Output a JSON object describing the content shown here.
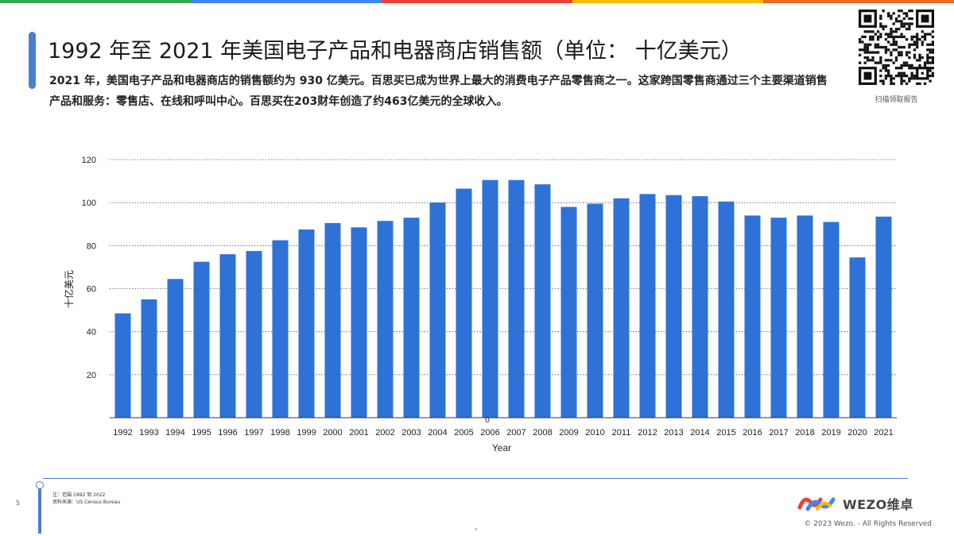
{
  "page": {
    "title": "1992 年至 2021 年美国电子产品和电器商店销售额（单位： 十亿美元）",
    "description": "2021 年，美国电子产品和电器商店的销售额约为 930 亿美元。百思买已成为世界上最大的消费电子产品零售商之一。这家跨国零售商通过三个主要渠道销售产品和服务：零售店、在线和呼叫中心。百思买在203财年创造了约463亿美元的全球收入。",
    "qr_caption": "扫描领取报告",
    "page_number": "5",
    "note_line1": "注：范围:1992 到 2022",
    "note_line2": "资料来源：US Census Bureau",
    "logo_text": "WEZO维卓",
    "copyright": "© 2023 Wezo. - All Rights Reserved",
    "colors": {
      "bar": "#2e72d8",
      "accent": "#4a7fd0",
      "grid": "#555555"
    },
    "top_bar_colors": [
      "#34a853",
      "#4285f4",
      "#ea4335",
      "#fbbc05",
      "#ea6a1f"
    ]
  },
  "chart_data": {
    "type": "bar",
    "title": "",
    "xlabel": "Year",
    "ylabel": "十亿美元",
    "ylim": [
      0,
      120
    ],
    "yticks": [
      20,
      40,
      60,
      80,
      100,
      120
    ],
    "zero_label": "0",
    "grid": "horizontal dotted",
    "legend": "none",
    "categories": [
      "1992",
      "1993",
      "1994",
      "1995",
      "1996",
      "1997",
      "1998",
      "1999",
      "2000",
      "2001",
      "2002",
      "2003",
      "2004",
      "2005",
      "2006",
      "2007",
      "2008",
      "2009",
      "2010",
      "2011",
      "2012",
      "2013",
      "2014",
      "2015",
      "2016",
      "2017",
      "2018",
      "2019",
      "2020",
      "2021"
    ],
    "values": [
      48.5,
      55,
      64.5,
      72.5,
      76,
      77.5,
      82.5,
      87.5,
      90.5,
      88.5,
      91.5,
      93,
      100,
      106.5,
      110.5,
      110.5,
      108.5,
      98,
      99.5,
      102,
      104,
      103.5,
      103,
      100.5,
      94,
      93,
      94,
      91,
      74.5,
      93.5
    ]
  }
}
